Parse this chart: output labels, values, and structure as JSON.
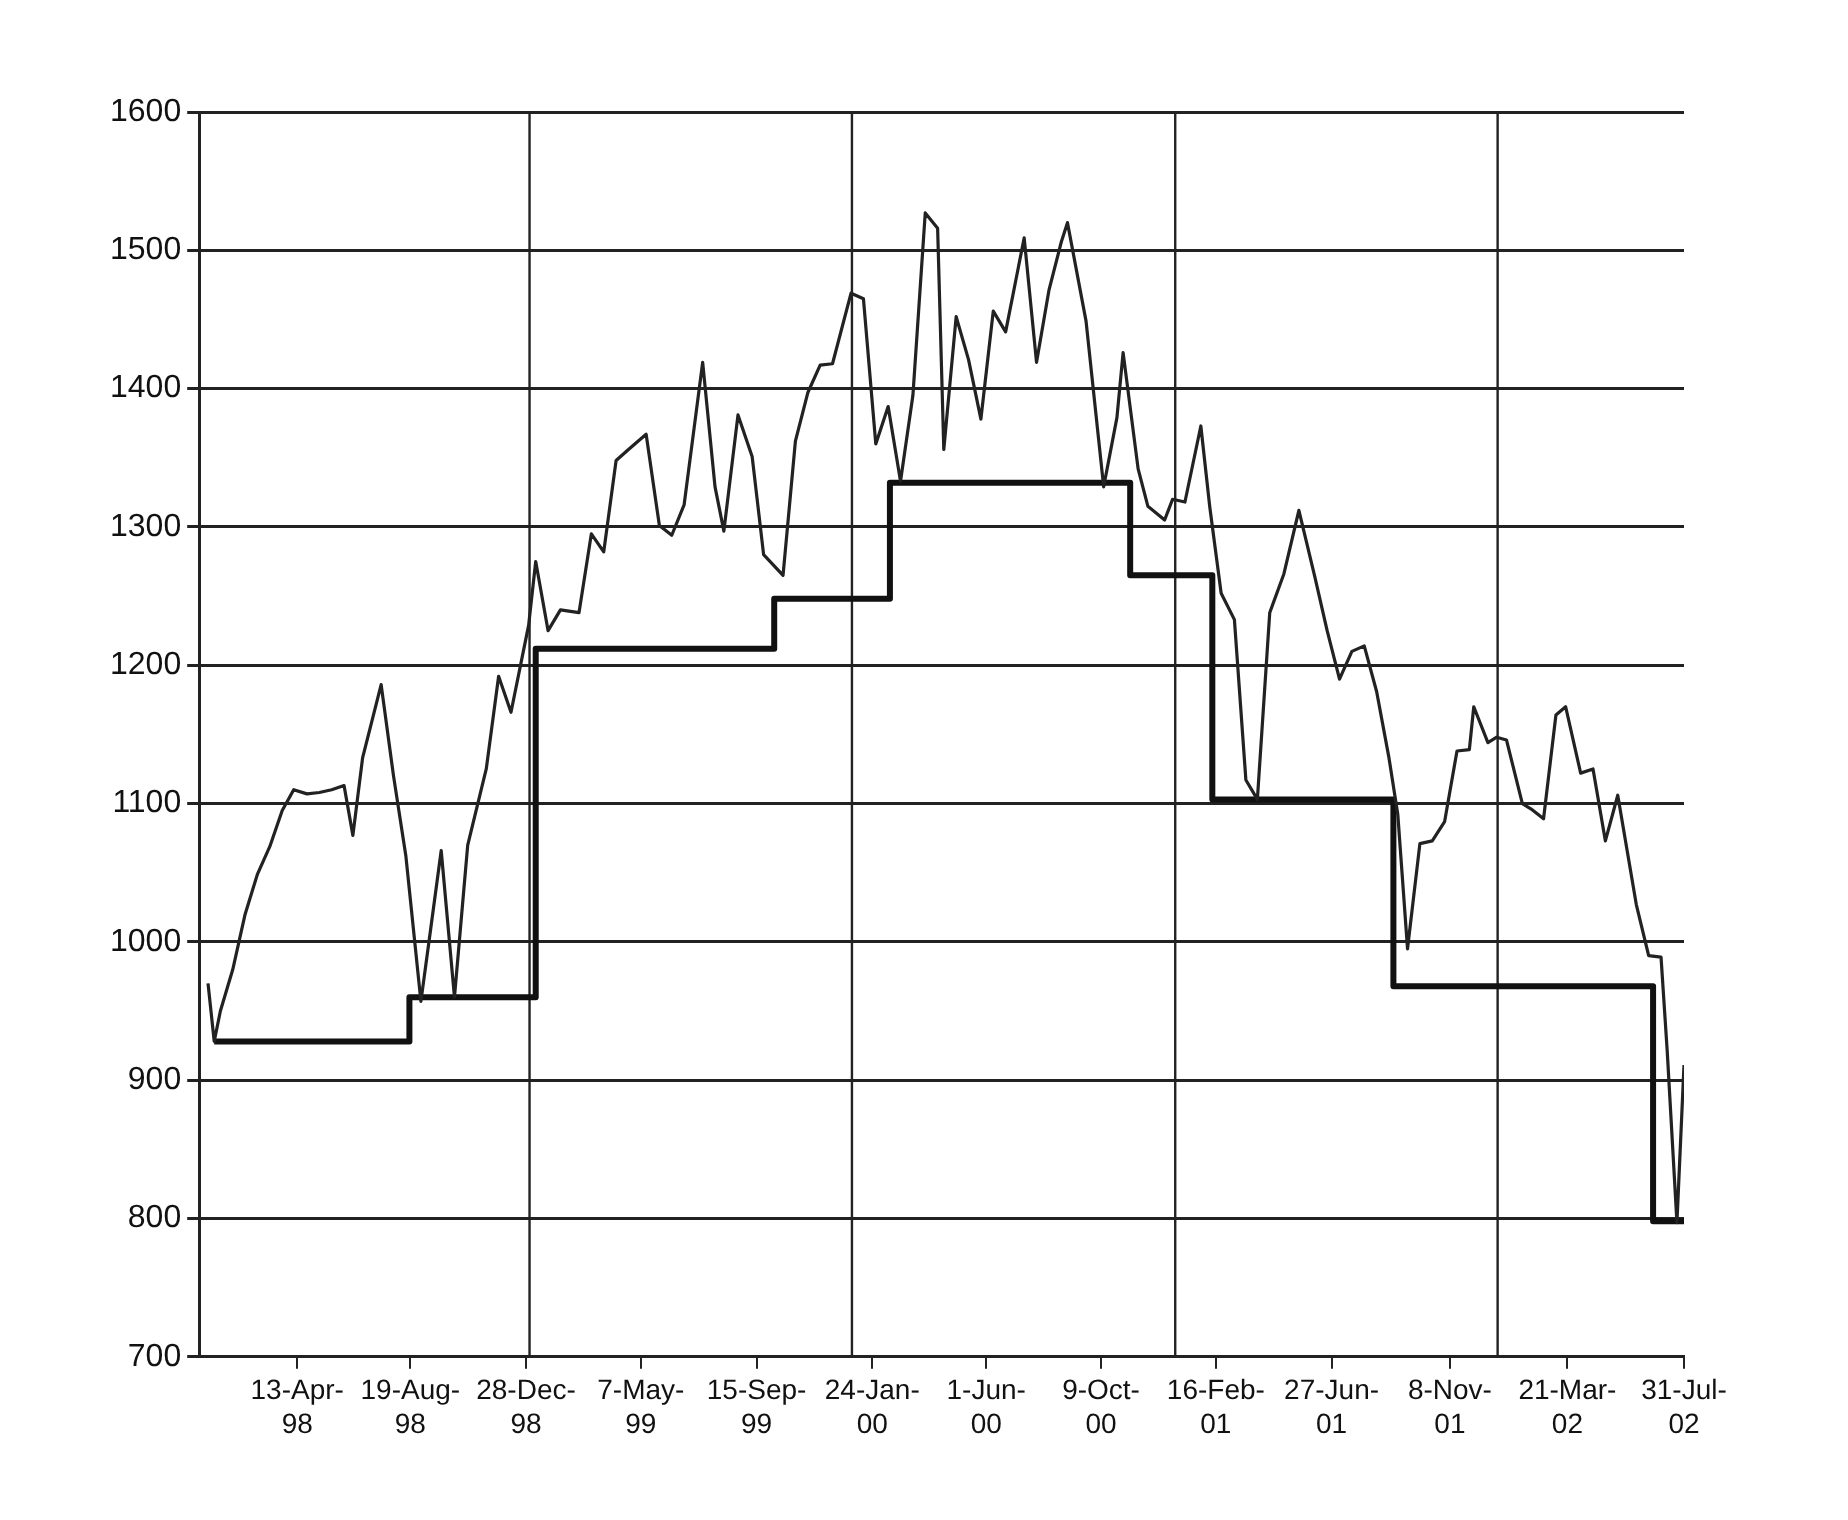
{
  "chart_data": {
    "type": "line",
    "xlim": [
      "1997-12-23",
      "2002-07-31"
    ],
    "ylim": [
      700,
      1600
    ],
    "xticks": [
      {
        "value": "1998-04-13",
        "label": "13-Apr-98"
      },
      {
        "value": "1998-08-19",
        "label": "19-Aug-98"
      },
      {
        "value": "1998-12-28",
        "label": "28-Dec-98"
      },
      {
        "value": "1999-05-07",
        "label": "7-May-99"
      },
      {
        "value": "1999-09-15",
        "label": "15-Sep-99"
      },
      {
        "value": "2000-01-24",
        "label": "24-Jan-00"
      },
      {
        "value": "2000-06-01",
        "label": "1-Jun-00"
      },
      {
        "value": "2000-10-09",
        "label": "9-Oct-00"
      },
      {
        "value": "2001-02-16",
        "label": "16-Feb-01"
      },
      {
        "value": "2001-06-27",
        "label": "27-Jun-01"
      },
      {
        "value": "2001-11-08",
        "label": "8-Nov-01"
      },
      {
        "value": "2002-03-21",
        "label": "21-Mar-02"
      },
      {
        "value": "2002-07-31",
        "label": "31-Jul-02"
      }
    ],
    "yticks": [
      700,
      800,
      900,
      1000,
      1100,
      1200,
      1300,
      1400,
      1500,
      1600
    ],
    "grid": "y",
    "legend": false,
    "ref_lines": [
      {
        "axis": "x",
        "value": "1999-01-01",
        "color": "#222222"
      },
      {
        "axis": "x",
        "value": "2000-01-01",
        "color": "#222222"
      },
      {
        "axis": "x",
        "value": "2001-01-01",
        "color": "#222222"
      },
      {
        "axis": "x",
        "value": "2002-01-01",
        "color": "#222222"
      }
    ],
    "series": [
      {
        "color": "#222222",
        "x": [
          "1998-01-02",
          "1998-01-09",
          "1998-01-16",
          "1998-01-30",
          "1998-02-13",
          "1998-02-27",
          "1998-03-13",
          "1998-03-27",
          "1998-04-09",
          "1998-04-24",
          "1998-05-08",
          "1998-05-22",
          "1998-06-05",
          "1998-06-15",
          "1998-06-26",
          "1998-07-17",
          "1998-07-31",
          "1998-08-14",
          "1998-08-31",
          "1998-09-11",
          "1998-09-23",
          "1998-10-08",
          "1998-10-23",
          "1998-11-13",
          "1998-11-27",
          "1998-12-11",
          "1998-12-31",
          "1999-01-08",
          "1999-01-22",
          "1999-02-05",
          "1999-02-26",
          "1999-03-12",
          "1999-03-26",
          "1999-04-09",
          "1999-04-23",
          "1999-05-13",
          "1999-05-28",
          "1999-06-11",
          "1999-06-25",
          "1999-07-16",
          "1999-07-30",
          "1999-08-09",
          "1999-08-25",
          "1999-09-10",
          "1999-09-23",
          "1999-10-15",
          "1999-10-29",
          "1999-11-12",
          "1999-11-26",
          "1999-12-10",
          "1999-12-31",
          "2000-01-14",
          "2000-01-28",
          "2000-02-11",
          "2000-02-25",
          "2000-03-10",
          "2000-03-24",
          "2000-04-07",
          "2000-04-14",
          "2000-04-28",
          "2000-05-12",
          "2000-05-26",
          "2000-06-09",
          "2000-06-23",
          "2000-07-14",
          "2000-07-28",
          "2000-08-11",
          "2000-08-25",
          "2000-09-01",
          "2000-09-22",
          "2000-10-12",
          "2000-10-27",
          "2000-11-03",
          "2000-11-20",
          "2000-12-01",
          "2000-12-20",
          "2000-12-29",
          "2001-01-12",
          "2001-01-30",
          "2001-02-09",
          "2001-02-22",
          "2001-03-09",
          "2001-03-22",
          "2001-04-04",
          "2001-04-18",
          "2001-05-04",
          "2001-05-21",
          "2001-06-08",
          "2001-06-22",
          "2001-07-06",
          "2001-07-20",
          "2001-08-03",
          "2001-08-17",
          "2001-08-31",
          "2001-09-10",
          "2001-09-21",
          "2001-10-05",
          "2001-10-19",
          "2001-11-02",
          "2001-11-16",
          "2001-11-30",
          "2001-12-05",
          "2001-12-21",
          "2001-12-31",
          "2002-01-11",
          "2002-01-29",
          "2002-02-08",
          "2002-02-22",
          "2002-03-08",
          "2002-03-19",
          "2002-04-05",
          "2002-04-19",
          "2002-05-03",
          "2002-05-17",
          "2002-06-07",
          "2002-06-21",
          "2002-07-05",
          "2002-07-12",
          "2002-07-23",
          "2002-07-31"
        ],
        "values": [
          970,
          928,
          950,
          980,
          1020,
          1049,
          1069,
          1095,
          1110,
          1107,
          1108,
          1110,
          1113,
          1077,
          1133,
          1186,
          1120,
          1062,
          957,
          1009,
          1066,
          960,
          1070,
          1125,
          1192,
          1166,
          1229,
          1275,
          1225,
          1240,
          1238,
          1295,
          1282,
          1348,
          1356,
          1367,
          1301,
          1294,
          1316,
          1419,
          1329,
          1297,
          1381,
          1351,
          1280,
          1265,
          1362,
          1397,
          1417,
          1418,
          1469,
          1465,
          1360,
          1387,
          1333,
          1395,
          1527,
          1516,
          1356,
          1452,
          1421,
          1378,
          1456,
          1441,
          1509,
          1419,
          1471,
          1506,
          1520,
          1449,
          1329,
          1379,
          1426,
          1342,
          1315,
          1305,
          1320,
          1318,
          1373,
          1315,
          1252,
          1233,
          1117,
          1103,
          1238,
          1266,
          1312,
          1264,
          1225,
          1190,
          1210,
          1214,
          1181,
          1133,
          1092,
          995,
          1071,
          1073,
          1087,
          1138,
          1139,
          1170,
          1144,
          1148,
          1146,
          1100,
          1096,
          1089,
          1164,
          1170,
          1122,
          1125,
          1073,
          1106,
          1027,
          990,
          989,
          921,
          797,
          911
        ]
      },
      {
        "type": "step",
        "color": "#111111",
        "x": [
          "1998-01-09",
          "1998-08-18",
          "1999-01-08",
          "1999-10-05",
          "2000-02-13",
          "2000-11-11",
          "2001-02-12",
          "2001-09-05",
          "2002-06-26",
          "2002-07-31"
        ],
        "values": [
          928,
          960,
          1212,
          1248,
          1332,
          1265,
          1103,
          968,
          798,
          798
        ]
      }
    ]
  }
}
